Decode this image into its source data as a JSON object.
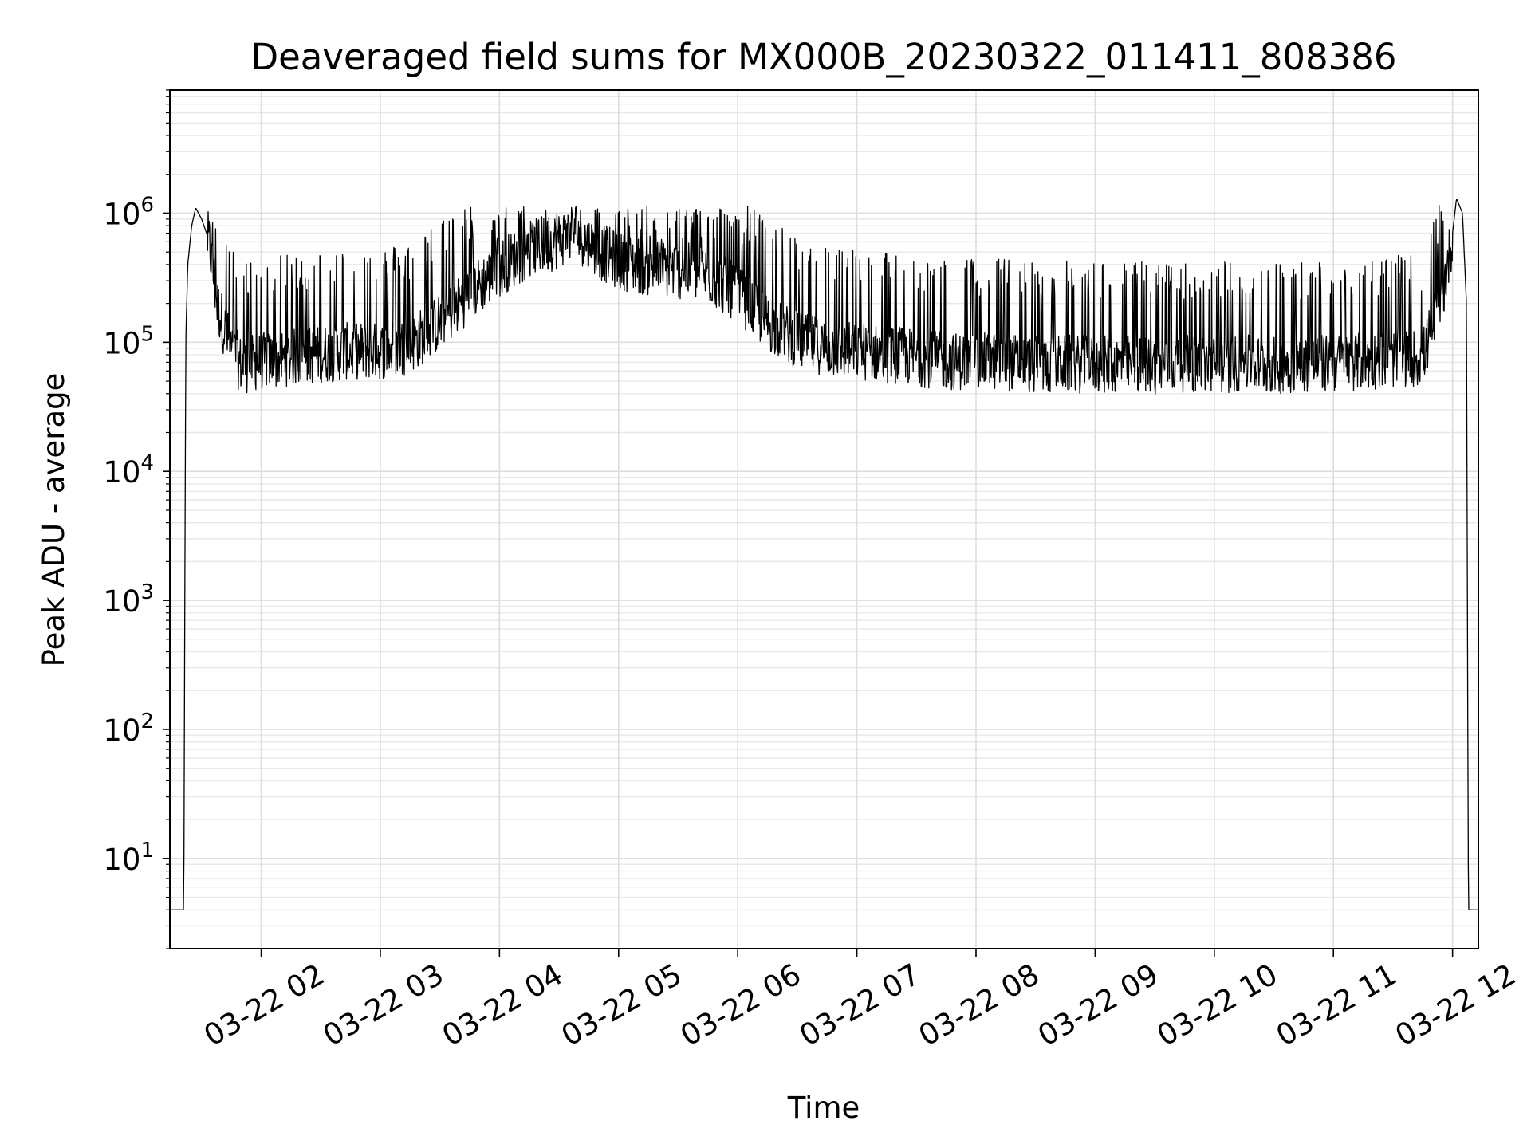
{
  "chart_data": {
    "type": "line",
    "title": "Deaveraged field sums for MX000B_20230322_011411_808386",
    "xlabel": "Time",
    "ylabel": "Peak ADU - average",
    "yscale": "log",
    "xlim": [
      "03-22 01:14",
      "03-22 12:13"
    ],
    "ylim": [
      2,
      9000000
    ],
    "grid": true,
    "line_color": "#000000",
    "x_ticks": [
      "03-22 02",
      "03-22 03",
      "03-22 04",
      "03-22 05",
      "03-22 06",
      "03-22 07",
      "03-22 08",
      "03-22 09",
      "03-22 10",
      "03-22 11",
      "03-22 12"
    ],
    "y_ticks": [
      {
        "base": "10",
        "exp": "1",
        "value": 10
      },
      {
        "base": "10",
        "exp": "2",
        "value": 100
      },
      {
        "base": "10",
        "exp": "3",
        "value": 1000
      },
      {
        "base": "10",
        "exp": "4",
        "value": 10000
      },
      {
        "base": "10",
        "exp": "5",
        "value": 100000
      },
      {
        "base": "10",
        "exp": "6",
        "value": 1000000
      }
    ],
    "series": [
      {
        "x": [
          "03-22 01:14",
          "03-22 01:21",
          "03-22 01:22",
          "03-22 01:23",
          "03-22 01:25",
          "03-22 01:27",
          "03-22 01:30",
          "03-22 01:34",
          "03-22 01:38",
          "03-22 01:45",
          "03-22 01:50",
          "03-22 02:00",
          "03-22 02:15",
          "03-22 02:30",
          "03-22 02:45",
          "03-22 03:00",
          "03-22 03:15",
          "03-22 03:30",
          "03-22 03:45",
          "03-22 04:00",
          "03-22 04:15",
          "03-22 04:30",
          "03-22 04:38",
          "03-22 04:45",
          "03-22 05:00",
          "03-22 05:15",
          "03-22 05:30",
          "03-22 05:45",
          "03-22 06:00",
          "03-22 06:15",
          "03-22 06:30",
          "03-22 06:45",
          "03-22 07:00",
          "03-22 07:15",
          "03-22 07:30",
          "03-22 07:45",
          "03-22 08:00",
          "03-22 08:15",
          "03-22 08:30",
          "03-22 08:45",
          "03-22 09:00",
          "03-22 09:15",
          "03-22 09:30",
          "03-22 09:45",
          "03-22 10:00",
          "03-22 10:15",
          "03-22 10:30",
          "03-22 10:45",
          "03-22 11:00",
          "03-22 11:15",
          "03-22 11:30",
          "03-22 11:45",
          "03-22 11:55",
          "03-22 12:00",
          "03-22 12:02",
          "03-22 12:05",
          "03-22 12:07",
          "03-22 12:08",
          "03-22 12:13"
        ],
        "y": [
          4,
          4,
          100000,
          400000,
          800000,
          1100000,
          900000,
          600000,
          200000,
          90000,
          70000,
          75000,
          80000,
          85000,
          90000,
          90000,
          100000,
          150000,
          250000,
          400000,
          550000,
          650000,
          800000,
          600000,
          450000,
          400000,
          380000,
          350000,
          250000,
          150000,
          110000,
          95000,
          90000,
          85000,
          80000,
          75000,
          75000,
          75000,
          70000,
          72000,
          70000,
          72000,
          70000,
          72000,
          70000,
          72000,
          70000,
          72000,
          72000,
          75000,
          78000,
          80000,
          250000,
          700000,
          1300000,
          1000000,
          200000,
          4,
          4
        ]
      }
    ]
  }
}
